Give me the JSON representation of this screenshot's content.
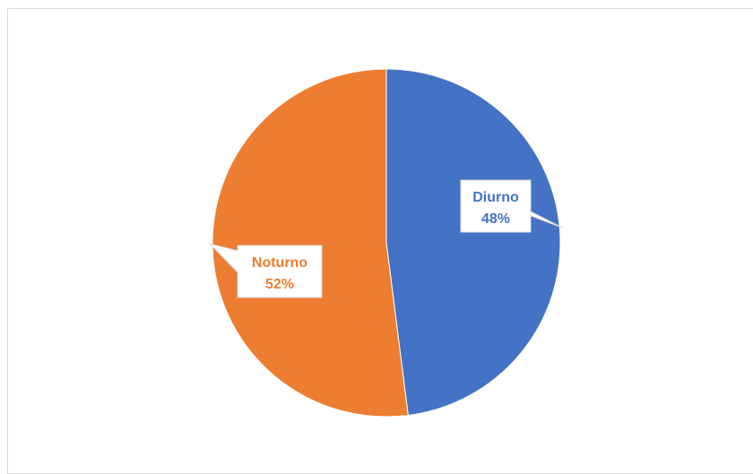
{
  "chart_data": {
    "type": "pie",
    "title": "",
    "categories": [
      "Diurno",
      "Noturno"
    ],
    "values": [
      48,
      52
    ],
    "labels": [
      "48%",
      "52%"
    ],
    "colors": [
      "#4472c4",
      "#ed7d31"
    ],
    "legend": "none",
    "data_labels": "callout"
  }
}
